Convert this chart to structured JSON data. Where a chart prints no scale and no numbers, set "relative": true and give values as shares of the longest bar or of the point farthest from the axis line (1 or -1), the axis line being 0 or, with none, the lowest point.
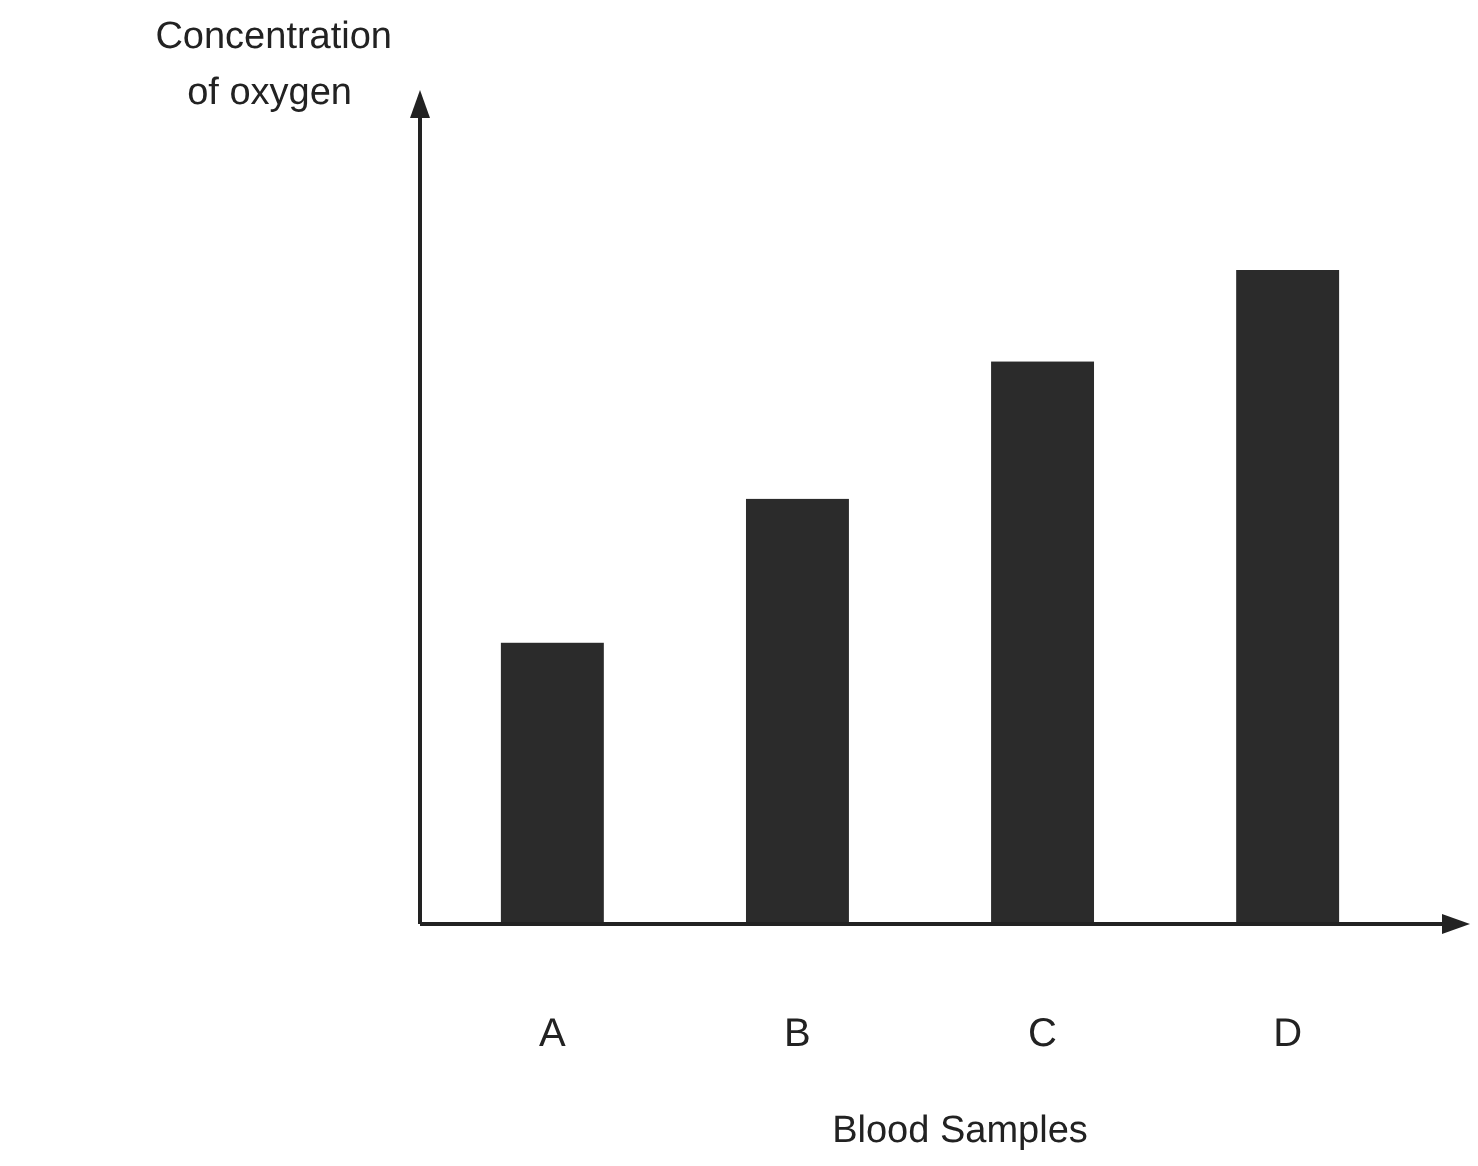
{
  "chart_data": {
    "type": "bar",
    "relative": true,
    "ylabel": "Concentration of oxygen",
    "xlabel": "Blood Samples",
    "categories": [
      "A",
      "B",
      "C",
      "D"
    ],
    "values": [
      0.43,
      0.65,
      0.86,
      1
    ],
    "color": "#2b2b2b"
  }
}
